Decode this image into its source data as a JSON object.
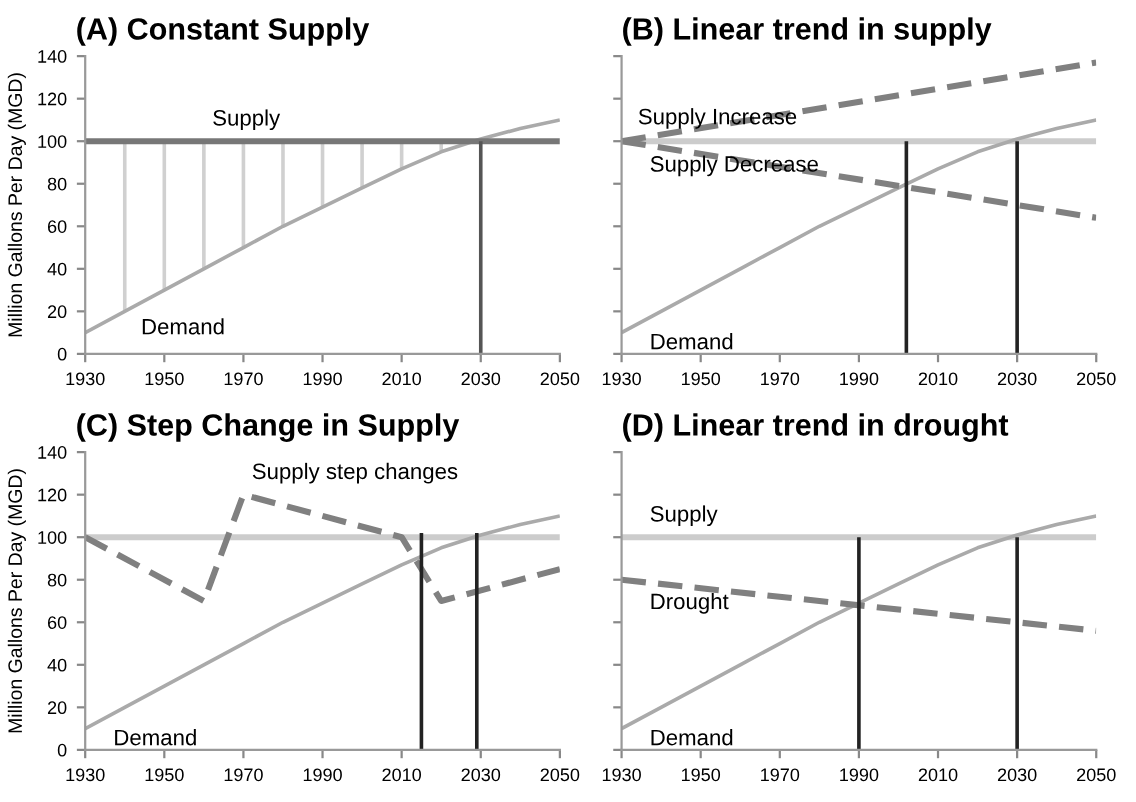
{
  "chart_data": [
    {
      "type": "line",
      "title": "(A) Constant Supply",
      "ylabel": "Million Gallons Per Day (MGD)",
      "xlim": [
        1930,
        2050
      ],
      "xticks": [
        1930,
        1950,
        1970,
        1990,
        2010,
        2030,
        2050
      ],
      "ylim": [
        0,
        140
      ],
      "yticks": [
        0,
        20,
        40,
        60,
        80,
        100,
        120,
        140
      ],
      "grid": false,
      "legend": false,
      "series": [
        {
          "color": "#d0d0d0",
          "x": [
            1940,
            1940
          ],
          "values": [
            20,
            100
          ]
        },
        {
          "color": "#d0d0d0",
          "x": [
            1950,
            1950
          ],
          "values": [
            30,
            100
          ]
        },
        {
          "color": "#d0d0d0",
          "x": [
            1960,
            1960
          ],
          "values": [
            40,
            100
          ]
        },
        {
          "color": "#d0d0d0",
          "x": [
            1970,
            1970
          ],
          "values": [
            50,
            100
          ]
        },
        {
          "color": "#d0d0d0",
          "x": [
            1980,
            1980
          ],
          "values": [
            60,
            100
          ]
        },
        {
          "color": "#d0d0d0",
          "x": [
            1990,
            1990
          ],
          "values": [
            69,
            100
          ]
        },
        {
          "color": "#d0d0d0",
          "x": [
            2000,
            2000
          ],
          "values": [
            78,
            100
          ]
        },
        {
          "color": "#d0d0d0",
          "x": [
            2010,
            2010
          ],
          "values": [
            87,
            100
          ]
        },
        {
          "color": "#d0d0d0",
          "x": [
            2020,
            2020
          ],
          "values": [
            95,
            100
          ]
        },
        {
          "color": "#aaaaaa",
          "x": [
            1930,
            1940,
            1950,
            1960,
            1970,
            1980,
            1990,
            2000,
            2010,
            2020,
            2030,
            2040,
            2050
          ],
          "values": [
            10,
            20,
            30,
            40,
            50,
            60,
            69,
            78,
            87,
            95,
            101,
            106,
            110
          ]
        },
        {
          "color": "#777777",
          "x": [
            1930,
            2050
          ],
          "values": [
            100,
            100
          ]
        },
        {
          "color": "#555555",
          "x": [
            2030,
            2030
          ],
          "values": [
            0,
            100
          ]
        }
      ],
      "annotations": [
        {
          "text": "Supply",
          "x": 1960,
          "y": 100
        },
        {
          "text": "Demand",
          "x": 1942,
          "y": 22
        }
      ]
    },
    {
      "type": "line",
      "title": "(B) Linear trend in supply",
      "xlim": [
        1930,
        2050
      ],
      "xticks": [
        1930,
        1950,
        1970,
        1990,
        2010,
        2030,
        2050
      ],
      "ylim": [
        0,
        140
      ],
      "yticks": [
        0,
        20,
        40,
        60,
        80,
        100,
        120,
        140
      ],
      "tick_labels": "x",
      "grid": false,
      "legend": false,
      "series": [
        {
          "color": "#cccccc",
          "x": [
            1930,
            2050
          ],
          "values": [
            100,
            100
          ]
        },
        {
          "color": "#aaaaaa",
          "x": [
            1930,
            1940,
            1950,
            1960,
            1970,
            1980,
            1990,
            2000,
            2010,
            2020,
            2030,
            2040,
            2050
          ],
          "values": [
            10,
            20,
            30,
            40,
            50,
            60,
            69,
            78,
            87,
            95,
            101,
            106,
            110
          ]
        },
        {
          "color": "#808080",
          "line_style": "dashed",
          "x": [
            1930,
            2050
          ],
          "values": [
            100,
            137
          ]
        },
        {
          "color": "#808080",
          "line_style": "dashed",
          "x": [
            1930,
            2050
          ],
          "values": [
            100,
            64
          ]
        },
        {
          "color": "#222222",
          "x": [
            2002,
            2002
          ],
          "values": [
            0,
            100
          ]
        },
        {
          "color": "#222222",
          "x": [
            2030,
            2030
          ],
          "values": [
            0,
            100
          ]
        }
      ],
      "annotations": [
        {
          "text": "Supply Increase",
          "x": 1932,
          "y": 100.6
        },
        {
          "text": "Supply Decrease",
          "x": 1935,
          "y": 98.5
        },
        {
          "text": "Demand",
          "x": 1935,
          "y": 15
        }
      ]
    },
    {
      "type": "line",
      "title": "(C) Step Change in Supply",
      "ylabel": "Million Gallons Per Day (MGD)",
      "xlim": [
        1930,
        2050
      ],
      "xticks": [
        1930,
        1950,
        1970,
        1990,
        2010,
        2030,
        2050
      ],
      "ylim": [
        0,
        140
      ],
      "yticks": [
        0,
        20,
        40,
        60,
        80,
        100,
        120,
        140
      ],
      "grid": false,
      "legend": false,
      "series": [
        {
          "color": "#cccccc",
          "x": [
            1930,
            2050
          ],
          "values": [
            100,
            100
          ]
        },
        {
          "color": "#aaaaaa",
          "x": [
            1930,
            1940,
            1950,
            1960,
            1970,
            1980,
            1990,
            2000,
            2010,
            2020,
            2030,
            2040,
            2050
          ],
          "values": [
            10,
            20,
            30,
            40,
            50,
            60,
            69,
            78,
            87,
            95,
            101,
            106,
            110
          ]
        },
        {
          "color": "#808080",
          "line_style": "dashed",
          "x": [
            1930,
            1960,
            1970,
            2010,
            2020,
            2050
          ],
          "values": [
            100,
            70,
            120,
            100,
            70,
            85
          ]
        },
        {
          "color": "#222222",
          "x": [
            2015,
            2015
          ],
          "values": [
            0,
            102
          ]
        },
        {
          "color": "#222222",
          "x": [
            2029,
            2029
          ],
          "values": [
            0,
            102
          ]
        }
      ],
      "annotations": [
        {
          "text": "Supply step changes",
          "x": 1970,
          "y": 120
        },
        {
          "text": "Demand",
          "x": 1935,
          "y": 15
        }
      ]
    },
    {
      "type": "line",
      "title": "(D) Linear trend in drought",
      "xlim": [
        1930,
        2050
      ],
      "xticks": [
        1930,
        1950,
        1970,
        1990,
        2010,
        2030,
        2050
      ],
      "ylim": [
        0,
        140
      ],
      "yticks": [
        0,
        20,
        40,
        60,
        80,
        100,
        120,
        140
      ],
      "tick_labels": "x",
      "grid": false,
      "legend": false,
      "series": [
        {
          "color": "#cccccc",
          "x": [
            1930,
            2050
          ],
          "values": [
            100,
            100
          ]
        },
        {
          "color": "#aaaaaa",
          "x": [
            1930,
            1940,
            1950,
            1960,
            1970,
            1980,
            1990,
            2000,
            2010,
            2020,
            2030,
            2040,
            2050
          ],
          "values": [
            10,
            20,
            30,
            40,
            50,
            60,
            69,
            78,
            87,
            95,
            101,
            106,
            110
          ]
        },
        {
          "color": "#808080",
          "line_style": "dashed",
          "x": [
            1930,
            2050
          ],
          "values": [
            80,
            56
          ]
        },
        {
          "color": "#222222",
          "x": [
            1990,
            1990
          ],
          "values": [
            0,
            100
          ]
        },
        {
          "color": "#222222",
          "x": [
            2030,
            2030
          ],
          "values": [
            0,
            100
          ]
        }
      ],
      "annotations": [
        {
          "text": "Supply",
          "x": 1935,
          "y": 100
        },
        {
          "text": "Drought",
          "x": 1935,
          "y": 79
        },
        {
          "text": "Demand",
          "x": 1935,
          "y": 15
        }
      ]
    }
  ]
}
